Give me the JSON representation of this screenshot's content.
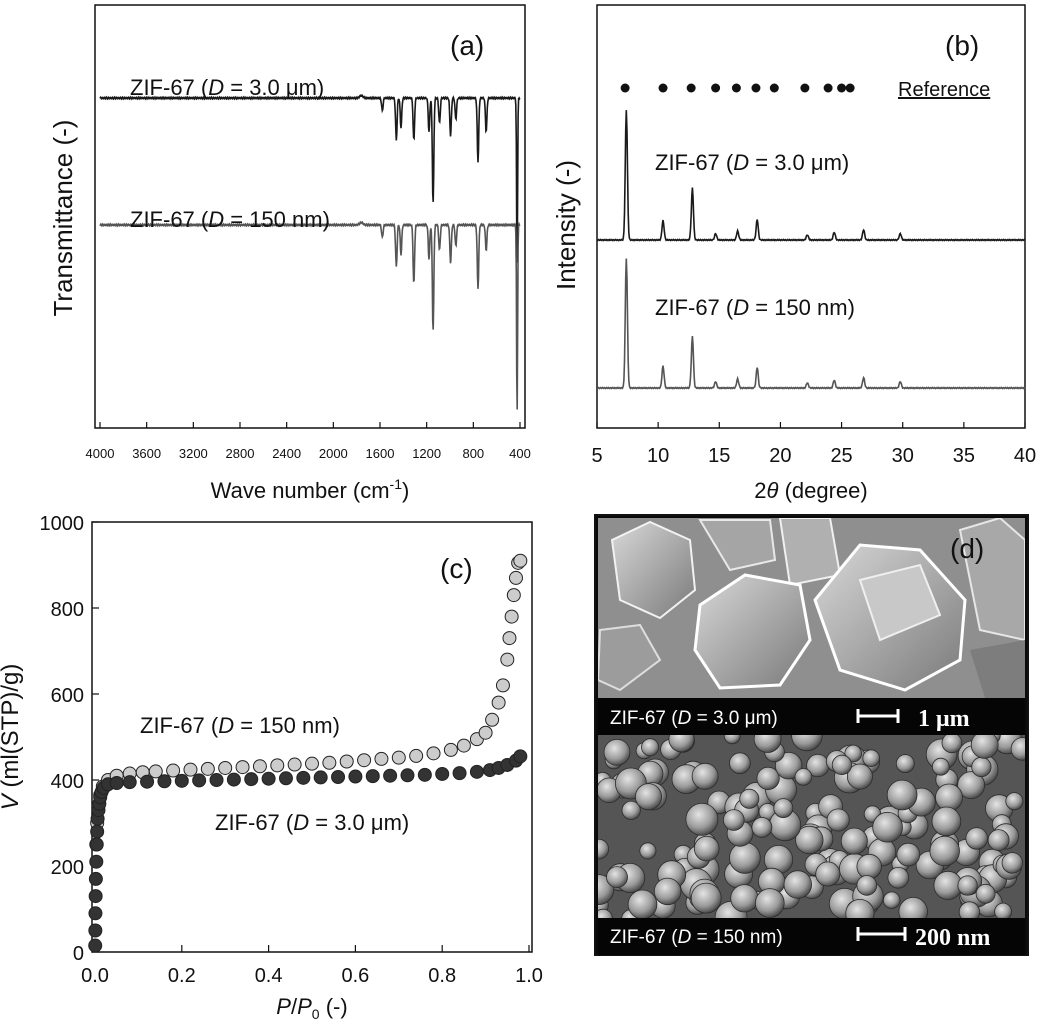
{
  "panels": {
    "a": {
      "letter": "(a)",
      "ylabel": "Transmittance (-)",
      "xlabel_main": "Wave number (cm",
      "xlabel_sup": "-1",
      "xlabel_close": ")",
      "label_top": {
        "pre": "ZIF-67 (",
        "var": "D",
        "post": " = 3.0 μm)"
      },
      "label_bottom": {
        "pre": "ZIF-67 (",
        "var": "D",
        "post": " = 150 nm)"
      }
    },
    "b": {
      "letter": "(b)",
      "ylabel": "Intensity (-)",
      "xlabel_pre": "2",
      "xlabel_var": "θ",
      "xlabel_post": " (degree)",
      "reference_label": "Reference",
      "label_top": {
        "pre": "ZIF-67 (",
        "var": "D",
        "post": " = 3.0 μm)"
      },
      "label_bottom": {
        "pre": "ZIF-67 (",
        "var": "D",
        "post": " = 150 nm)"
      }
    },
    "c": {
      "letter": "(c)",
      "ylabel_var": "V",
      "ylabel_post": " (ml(STP)/g)",
      "xlabel_p": "P",
      "xlabel_slash": "/",
      "xlabel_p0": "P",
      "xlabel_sub": "0",
      "xlabel_post": " (-)",
      "label_150": {
        "pre": "ZIF-67 (",
        "var": "D",
        "post": " = 150 nm)"
      },
      "label_3um": {
        "pre": "ZIF-67 (",
        "var": "D",
        "post": " = 3.0 μm)"
      }
    },
    "d": {
      "letter": "(d)",
      "top_caption": {
        "pre": "ZIF-67 (",
        "var": "D",
        "post": " = 3.0 μm)"
      },
      "top_scale": "1 μm",
      "bottom_caption": {
        "pre": "ZIF-67 (",
        "var": "D",
        "post": " = 150 nm)"
      },
      "bottom_scale": "200 nm"
    }
  },
  "chart_data": [
    {
      "panel": "a",
      "type": "line",
      "xlim": [
        4000,
        400
      ],
      "xticks": [
        "4000",
        "3600",
        "3200",
        "2800",
        "2400",
        "2000",
        "1600",
        "1200",
        "800",
        "400"
      ],
      "series": [
        {
          "name": "ZIF-67 (D = 3.0 μm)",
          "color": "#1a1a1a",
          "baseline": 0.78,
          "peaks_cm1": [
            1580,
            1460,
            1420,
            1310,
            1180,
            1145,
            1090,
            995,
            950,
            760,
            690,
            425
          ],
          "peak_depths": [
            0.03,
            0.1,
            0.07,
            0.1,
            0.08,
            0.25,
            0.06,
            0.09,
            0.05,
            0.15,
            0.08,
            0.4
          ]
        },
        {
          "name": "ZIF-67 (D = 150 nm)",
          "color": "#555555",
          "baseline": 0.48,
          "peaks_cm1": [
            1580,
            1460,
            1420,
            1310,
            1180,
            1145,
            1090,
            995,
            950,
            760,
            690,
            425
          ],
          "peak_depths": [
            0.03,
            0.1,
            0.07,
            0.14,
            0.08,
            0.25,
            0.06,
            0.09,
            0.05,
            0.15,
            0.06,
            0.45
          ]
        }
      ]
    },
    {
      "panel": "b",
      "type": "line",
      "xlim": [
        5,
        40
      ],
      "xticks": [
        "5",
        "10",
        "15",
        "20",
        "25",
        "30",
        "35",
        "40"
      ],
      "reference_peaks": [
        7.3,
        10.4,
        12.7,
        14.7,
        16.4,
        18.0,
        19.5,
        22.0,
        23.9,
        25.0,
        25.7
      ],
      "series": [
        {
          "name": "ZIF-67 (D = 3.0 μm)",
          "color": "#1a1a1a",
          "peaks_2theta": [
            7.4,
            10.4,
            12.8,
            14.7,
            16.5,
            18.1,
            22.2,
            24.4,
            26.8,
            29.8
          ],
          "heights": [
            1.0,
            0.15,
            0.4,
            0.05,
            0.07,
            0.16,
            0.04,
            0.06,
            0.08,
            0.05
          ]
        },
        {
          "name": "ZIF-67 (D = 150 nm)",
          "color": "#555555",
          "peaks_2theta": [
            7.4,
            10.4,
            12.8,
            14.7,
            16.5,
            18.1,
            22.2,
            24.4,
            26.8,
            29.8
          ],
          "heights": [
            1.0,
            0.17,
            0.4,
            0.05,
            0.07,
            0.16,
            0.04,
            0.06,
            0.08,
            0.05
          ]
        }
      ]
    },
    {
      "panel": "c",
      "type": "scatter",
      "xlim": [
        0,
        1.0
      ],
      "ylim": [
        0,
        1000
      ],
      "xticks": [
        "0.0",
        "0.2",
        "0.4",
        "0.6",
        "0.8",
        "1.0"
      ],
      "yticks": [
        "0",
        "200",
        "400",
        "600",
        "800",
        "1000"
      ],
      "series": [
        {
          "name": "ZIF-67 (D = 150 nm)",
          "color": "#cccccc",
          "x": [
            0.003,
            0.005,
            0.008,
            0.012,
            0.018,
            0.03,
            0.05,
            0.08,
            0.11,
            0.14,
            0.18,
            0.22,
            0.26,
            0.3,
            0.34,
            0.38,
            0.42,
            0.46,
            0.5,
            0.54,
            0.58,
            0.62,
            0.66,
            0.7,
            0.74,
            0.78,
            0.82,
            0.85,
            0.88,
            0.9,
            0.915,
            0.93,
            0.94,
            0.95,
            0.955,
            0.96,
            0.965,
            0.97,
            0.975,
            0.98
          ],
          "y": [
            250,
            300,
            340,
            365,
            385,
            400,
            410,
            415,
            418,
            420,
            422,
            424,
            426,
            428,
            430,
            432,
            434,
            436,
            438,
            440,
            443,
            446,
            449,
            452,
            456,
            462,
            470,
            480,
            495,
            510,
            540,
            580,
            620,
            680,
            730,
            780,
            830,
            870,
            905,
            910
          ]
        },
        {
          "name": "ZIF-67 (D = 3.0 μm)",
          "color": "#333333",
          "x": [
            0.0005,
            0.0008,
            0.001,
            0.0015,
            0.002,
            0.003,
            0.004,
            0.005,
            0.006,
            0.008,
            0.01,
            0.012,
            0.015,
            0.02,
            0.03,
            0.05,
            0.08,
            0.12,
            0.16,
            0.2,
            0.24,
            0.28,
            0.32,
            0.36,
            0.4,
            0.44,
            0.48,
            0.52,
            0.56,
            0.6,
            0.64,
            0.68,
            0.72,
            0.76,
            0.8,
            0.84,
            0.88,
            0.91,
            0.93,
            0.95,
            0.97,
            0.98
          ],
          "y": [
            15,
            50,
            90,
            130,
            170,
            210,
            250,
            280,
            310,
            330,
            345,
            360,
            372,
            382,
            390,
            393,
            395,
            396,
            397,
            398,
            399,
            400,
            401,
            402,
            403,
            404,
            405,
            406,
            407,
            408,
            409,
            410,
            411,
            412,
            414,
            416,
            419,
            423,
            428,
            435,
            445,
            455
          ]
        }
      ]
    }
  ]
}
